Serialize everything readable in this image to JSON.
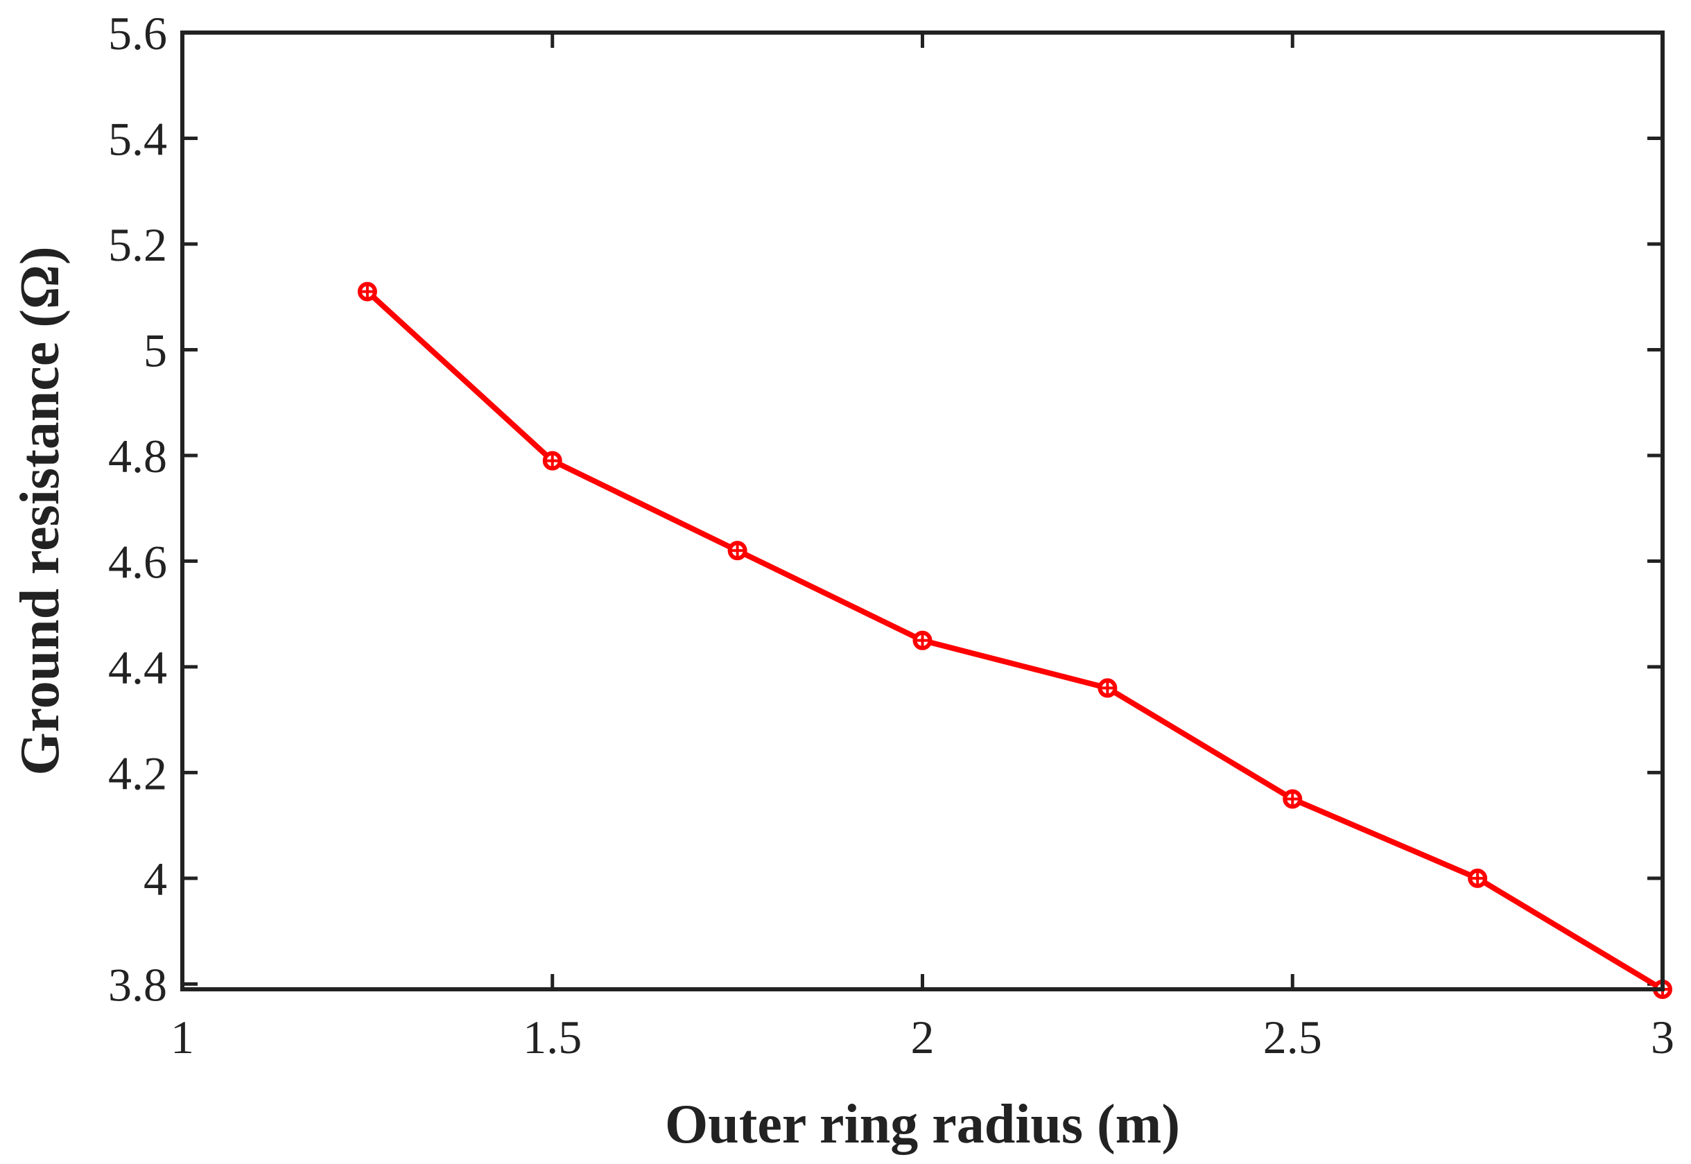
{
  "chart_data": {
    "type": "line",
    "title": "",
    "xlabel": "Outer ring radius (m)",
    "ylabel": "Ground resistance (Ω)",
    "xlim": [
      1,
      3
    ],
    "ylim": [
      3.79,
      5.6
    ],
    "xticks": [
      1,
      1.5,
      2,
      2.5,
      3
    ],
    "xtick_labels": [
      "1",
      "1.5",
      "2",
      "2.5",
      "3"
    ],
    "yticks": [
      3.8,
      4,
      4.2,
      4.4,
      4.6,
      4.8,
      5,
      5.2,
      5.4,
      5.6
    ],
    "ytick_labels": [
      "3.8",
      "4",
      "4.2",
      "4.4",
      "4.6",
      "4.8",
      "5",
      "5.2",
      "5.4",
      "5.6"
    ],
    "grid": false,
    "legend": "none",
    "series": [
      {
        "color": "#ff0000",
        "marker": "circle-plus",
        "x": [
          1.25,
          1.5,
          1.75,
          2,
          2.25,
          2.5,
          2.75,
          3
        ],
        "y": [
          5.11,
          4.79,
          4.62,
          4.45,
          4.36,
          4.15,
          4.0,
          3.79
        ]
      }
    ]
  }
}
